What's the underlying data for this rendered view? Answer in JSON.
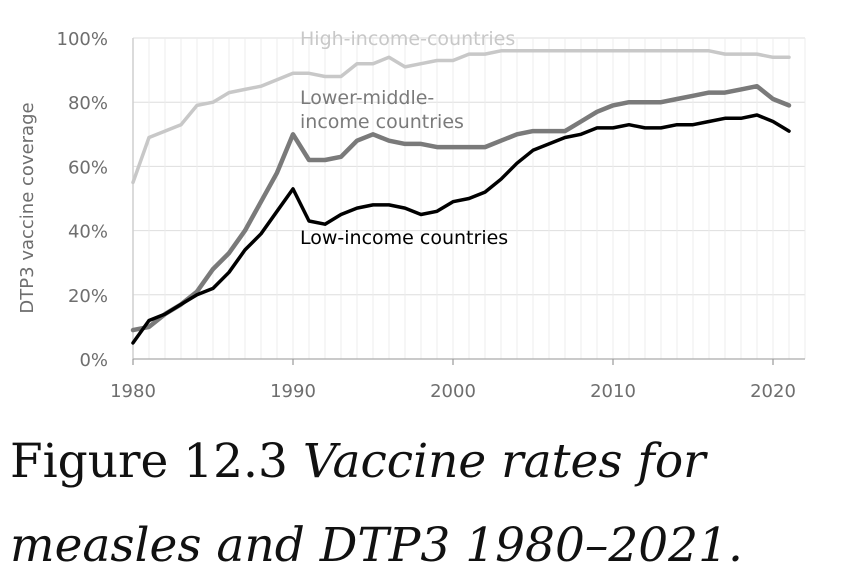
{
  "chart_data": {
    "type": "line",
    "title": "",
    "xlabel": "",
    "ylabel": "DTP3 vaccine coverage",
    "xlim": [
      1980,
      2022
    ],
    "ylim": [
      0,
      100
    ],
    "xticks": [
      1980,
      1990,
      2000,
      2010,
      2020
    ],
    "yticks": [
      0,
      20,
      40,
      60,
      80,
      100
    ],
    "ytick_labels": [
      "0%",
      "20%",
      "40%",
      "60%",
      "80%",
      "100%"
    ],
    "grid": true,
    "x": [
      1980,
      1981,
      1982,
      1983,
      1984,
      1985,
      1986,
      1987,
      1988,
      1989,
      1990,
      1991,
      1992,
      1993,
      1994,
      1995,
      1996,
      1997,
      1998,
      1999,
      2000,
      2001,
      2002,
      2003,
      2004,
      2005,
      2006,
      2007,
      2008,
      2009,
      2010,
      2011,
      2012,
      2013,
      2014,
      2015,
      2016,
      2017,
      2018,
      2019,
      2020,
      2021
    ],
    "series": [
      {
        "name": "High-income-countries",
        "label_lines": [
          "High-income-countries"
        ],
        "color": "#c8c8c8",
        "values": [
          55,
          69,
          71,
          73,
          79,
          80,
          83,
          84,
          85,
          87,
          89,
          89,
          88,
          88,
          92,
          92,
          94,
          91,
          92,
          93,
          93,
          95,
          95,
          96,
          96,
          96,
          96,
          96,
          96,
          96,
          96,
          96,
          96,
          96,
          96,
          96,
          96,
          95,
          95,
          95,
          94,
          94
        ]
      },
      {
        "name": "Lower-middle-income countries",
        "label_lines": [
          "Lower-middle-",
          "income countries"
        ],
        "color": "#7a7a7a",
        "values": [
          9,
          10,
          14,
          17,
          21,
          28,
          33,
          40,
          49,
          58,
          70,
          62,
          62,
          63,
          68,
          70,
          68,
          67,
          67,
          66,
          66,
          66,
          66,
          68,
          70,
          71,
          71,
          71,
          74,
          77,
          79,
          80,
          80,
          80,
          81,
          82,
          83,
          83,
          84,
          85,
          81,
          79
        ]
      },
      {
        "name": "Low-income countries",
        "label_lines": [
          "Low-income countries"
        ],
        "color": "#000000",
        "values": [
          5,
          12,
          14,
          17,
          20,
          22,
          27,
          34,
          39,
          46,
          53,
          43,
          42,
          45,
          47,
          48,
          48,
          47,
          45,
          46,
          49,
          50,
          52,
          56,
          61,
          65,
          67,
          69,
          70,
          72,
          72,
          73,
          72,
          72,
          73,
          73,
          74,
          75,
          75,
          76,
          74,
          71
        ]
      }
    ]
  },
  "caption": {
    "label": "Figure 12.3",
    "text": "Vaccine rates for measles and DTP3 1980–2021."
  }
}
